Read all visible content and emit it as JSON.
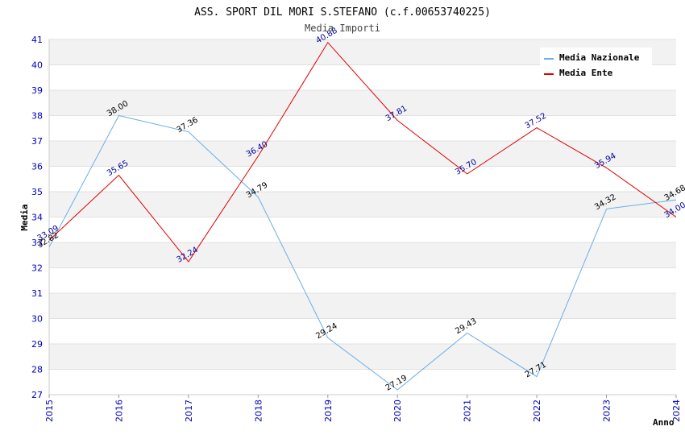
{
  "chart_data": {
    "type": "line",
    "title": "ASS. SPORT DIL MORI S.STEFANO (c.f.00653740225)",
    "subtitle": "Media Importi",
    "xlabel": "Anno",
    "ylabel": "Media",
    "ylim": [
      27,
      41
    ],
    "yticks": [
      "27",
      "28",
      "29",
      "30",
      "31",
      "32",
      "33",
      "34",
      "35",
      "36",
      "37",
      "38",
      "39",
      "40",
      "41"
    ],
    "categories": [
      "2015",
      "2016",
      "2017",
      "2018",
      "2019",
      "2020",
      "2021",
      "2022",
      "2023",
      "2024"
    ],
    "grid": "horizontal alternating bands",
    "legend_position": "top-right",
    "series": [
      {
        "name": "Media Nazionale",
        "color": "#6aaee8",
        "label_color": "#000000",
        "values": [
          32.82,
          38.0,
          37.36,
          34.79,
          29.24,
          27.19,
          29.43,
          27.71,
          34.32,
          34.68
        ],
        "labels": [
          "32.82",
          "38.00",
          "37.36",
          "34.79",
          "29.24",
          "27.19",
          "29.43",
          "27.71",
          "34.32",
          "34.68"
        ]
      },
      {
        "name": "Media Ente",
        "color": "#e00000",
        "label_color": "#000099",
        "values": [
          33.09,
          35.65,
          32.24,
          36.4,
          40.88,
          37.81,
          35.7,
          37.52,
          35.94,
          34.0
        ],
        "labels": [
          "33.09",
          "35.65",
          "32.24",
          "36.40",
          "40.88",
          "37.81",
          "35.70",
          "37.52",
          "35.94",
          "34.00"
        ]
      }
    ]
  }
}
